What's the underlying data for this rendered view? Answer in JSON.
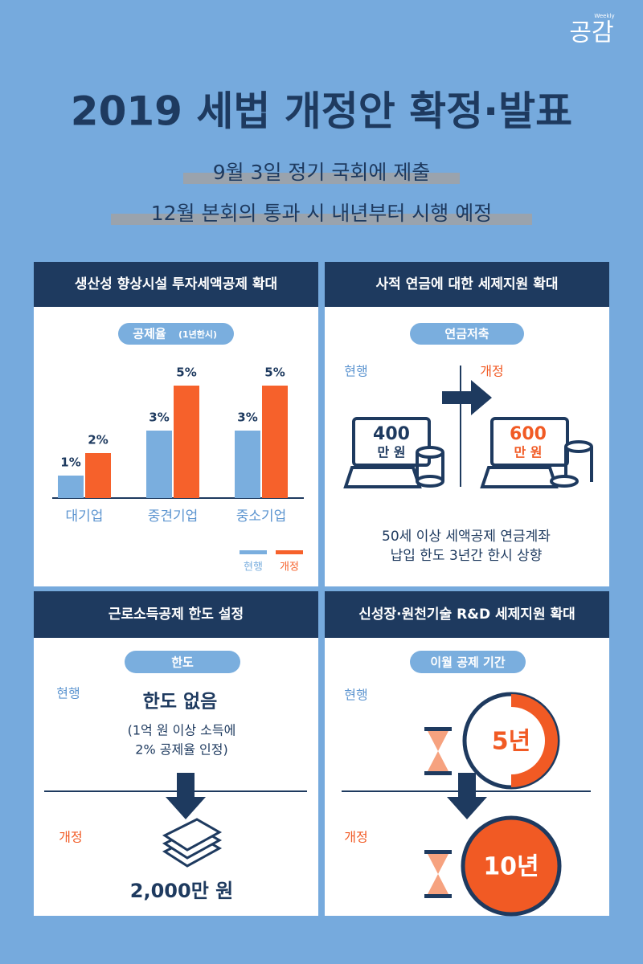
{
  "brand": {
    "name": "공감",
    "tag": "Weekly"
  },
  "title": "2019 세법 개정안 확정·발표",
  "subtitle": [
    "9월 3일 정기 국회에 제출",
    "12월 본회의 통과 시 내년부터 시행 예정"
  ],
  "panels": [
    {
      "heading": "생산성 향상시설 투자세액공제 확대",
      "pill": "공제율",
      "pill_note": "(1년한시)",
      "chart": {
        "type": "bar",
        "categories": [
          "대기업",
          "중견기업",
          "중소기업"
        ],
        "series": [
          {
            "name": "현행",
            "color": "#7aaede",
            "values": [
              1,
              3,
              3
            ],
            "value_labels": [
              "1%",
              "3%",
              "3%"
            ]
          },
          {
            "name": "개정",
            "color": "#f6612b",
            "values": [
              2,
              5,
              5
            ],
            "value_labels": [
              "2%",
              "5%",
              "5%"
            ]
          }
        ]
      }
    },
    {
      "heading": "사적 연금에 대한 세제지원 확대",
      "pill": "연금저축",
      "before_label": "현행",
      "after_label": "개정",
      "before_amount": "400",
      "after_amount": "600",
      "unit": "만 원",
      "caption": [
        "50세 이상 세액공제 연금계좌",
        "납입 한도 3년간 한시 상향"
      ]
    },
    {
      "heading": "근로소득공제 한도 설정",
      "pill": "한도",
      "before_label": "현행",
      "before_text": "한도 없음",
      "before_note": [
        "(1억 원 이상 소득에",
        "2% 공제율 인정)"
      ],
      "after_label": "개정",
      "after_text": "2,000만 원"
    },
    {
      "heading": "신성장·원천기술 R&D 세제지원 확대",
      "pill": "이월 공제 기간",
      "before_label": "현행",
      "before_text": "5년",
      "after_label": "개정",
      "after_text": "10년"
    }
  ]
}
